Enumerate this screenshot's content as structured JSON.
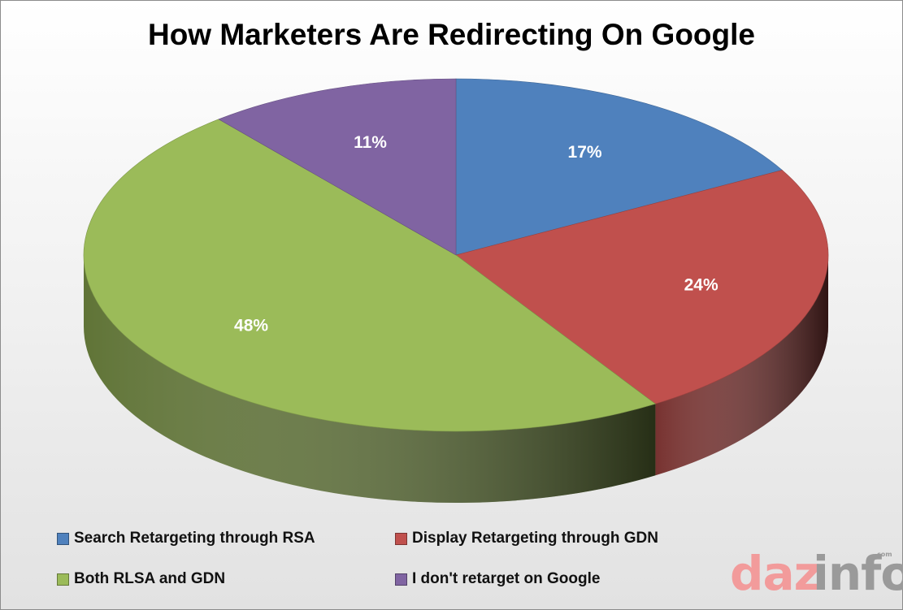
{
  "chart_data": {
    "type": "pie",
    "title": "How Marketers Are Redirecting On Google",
    "categories": [
      "Search Retargeting through RSA",
      "Display Retargeting through GDN",
      "Both RLSA and GDN",
      "I don't retarget on Google"
    ],
    "values": [
      17,
      24,
      48,
      11
    ],
    "labels": [
      "17%",
      "24%",
      "48%",
      "11%"
    ],
    "colors": [
      "#4f81bd",
      "#c0504d",
      "#9bbb59",
      "#8064a2"
    ],
    "legend_position": "bottom",
    "style": "3d"
  },
  "watermark": {
    "text_pink": "daz",
    "text_gray": "info",
    "suffix": ".com"
  }
}
